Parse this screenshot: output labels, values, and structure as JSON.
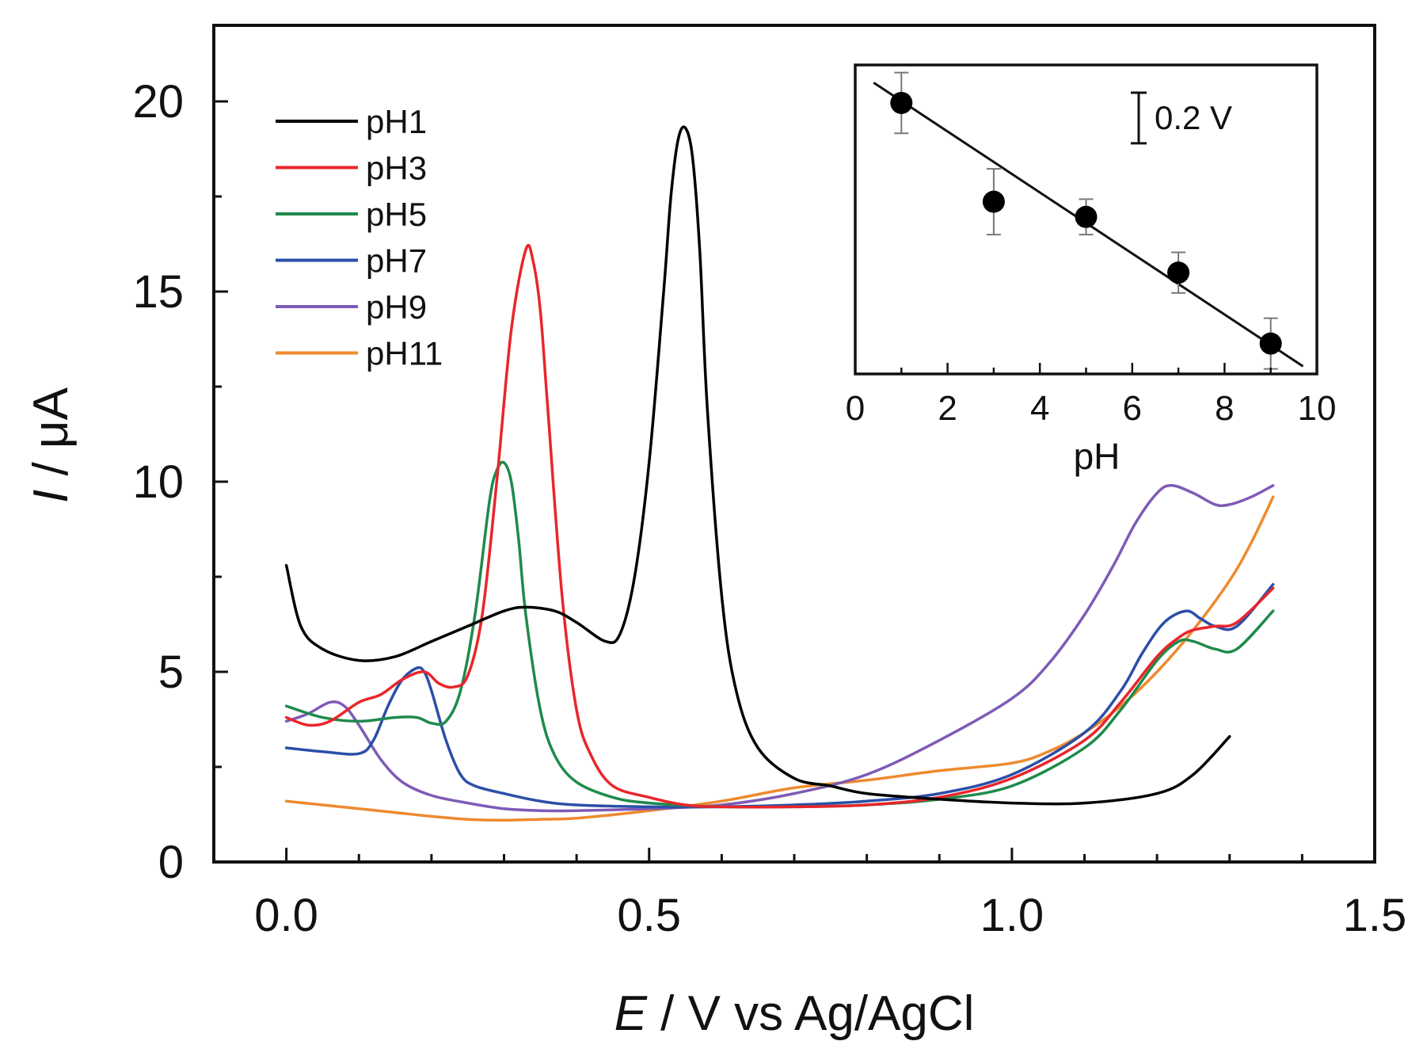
{
  "chart_data": [
    {
      "type": "line",
      "title": "",
      "xlabel_var": "E",
      "xlabel_rest": " / V vs Ag/AgCl",
      "ylabel_var": "I",
      "ylabel_rest": " / μA",
      "xlim": [
        -0.1,
        1.5
      ],
      "ylim": [
        0,
        22
      ],
      "xticks": [
        0.0,
        0.5,
        1.0,
        1.5
      ],
      "xtick_labels": [
        "0.0",
        "0.5",
        "1.0",
        "1.5"
      ],
      "yticks": [
        0,
        5,
        10,
        15,
        20
      ],
      "ytick_labels": [
        "0",
        "5",
        "10",
        "15",
        "20"
      ],
      "grid": false,
      "legend_position": "top-left",
      "series": [
        {
          "name": "pH1",
          "color": "#000000",
          "x": [
            0.0,
            0.02,
            0.05,
            0.1,
            0.15,
            0.2,
            0.25,
            0.3,
            0.33,
            0.37,
            0.4,
            0.44,
            0.46,
            0.48,
            0.5,
            0.52,
            0.53,
            0.54,
            0.55,
            0.56,
            0.57,
            0.58,
            0.6,
            0.62,
            0.65,
            0.7,
            0.75,
            0.8,
            0.9,
            1.0,
            1.1,
            1.2,
            1.25,
            1.3
          ],
          "y": [
            7.8,
            6.2,
            5.6,
            5.3,
            5.4,
            5.8,
            6.2,
            6.6,
            6.7,
            6.6,
            6.3,
            5.8,
            6.0,
            7.5,
            10.5,
            15.0,
            17.5,
            19.0,
            19.3,
            18.5,
            16.0,
            12.0,
            7.0,
            4.5,
            3.0,
            2.2,
            2.0,
            1.8,
            1.65,
            1.55,
            1.55,
            1.8,
            2.3,
            3.3
          ]
        },
        {
          "name": "pH3",
          "color": "#e8262b",
          "x": [
            0.0,
            0.03,
            0.06,
            0.1,
            0.13,
            0.16,
            0.19,
            0.21,
            0.23,
            0.25,
            0.27,
            0.29,
            0.31,
            0.33,
            0.34,
            0.35,
            0.36,
            0.38,
            0.4,
            0.42,
            0.45,
            0.5,
            0.55,
            0.6,
            0.7,
            0.8,
            0.9,
            1.0,
            1.1,
            1.15,
            1.2,
            1.23,
            1.25,
            1.28,
            1.31,
            1.36
          ],
          "y": [
            3.8,
            3.6,
            3.7,
            4.2,
            4.4,
            4.8,
            5.0,
            4.7,
            4.6,
            4.9,
            6.5,
            10.0,
            14.0,
            16.1,
            15.8,
            14.5,
            12.0,
            7.0,
            4.0,
            2.8,
            2.0,
            1.7,
            1.5,
            1.45,
            1.45,
            1.5,
            1.7,
            2.2,
            3.2,
            4.2,
            5.4,
            5.9,
            6.1,
            6.2,
            6.3,
            7.2
          ]
        },
        {
          "name": "pH5",
          "color": "#1f8a4c",
          "x": [
            0.0,
            0.05,
            0.1,
            0.15,
            0.18,
            0.2,
            0.22,
            0.24,
            0.26,
            0.28,
            0.29,
            0.3,
            0.31,
            0.32,
            0.33,
            0.35,
            0.37,
            0.4,
            0.45,
            0.5,
            0.6,
            0.7,
            0.8,
            0.9,
            1.0,
            1.1,
            1.15,
            1.2,
            1.23,
            1.25,
            1.28,
            1.31,
            1.36
          ],
          "y": [
            4.1,
            3.8,
            3.7,
            3.8,
            3.8,
            3.65,
            3.7,
            4.5,
            6.5,
            9.5,
            10.3,
            10.5,
            10.0,
            8.5,
            6.5,
            4.0,
            2.8,
            2.1,
            1.7,
            1.55,
            1.45,
            1.45,
            1.5,
            1.65,
            2.0,
            3.0,
            4.0,
            5.3,
            5.8,
            5.8,
            5.6,
            5.6,
            6.6
          ]
        },
        {
          "name": "pH7",
          "color": "#2b4fa8",
          "x": [
            0.0,
            0.05,
            0.1,
            0.12,
            0.14,
            0.16,
            0.18,
            0.19,
            0.2,
            0.22,
            0.24,
            0.26,
            0.3,
            0.35,
            0.4,
            0.5,
            0.6,
            0.7,
            0.8,
            0.9,
            1.0,
            1.1,
            1.15,
            1.18,
            1.21,
            1.24,
            1.26,
            1.28,
            1.31,
            1.36
          ],
          "y": [
            3.0,
            2.9,
            2.85,
            3.2,
            4.1,
            4.8,
            5.1,
            5.0,
            4.5,
            3.2,
            2.3,
            2.0,
            1.8,
            1.6,
            1.5,
            1.45,
            1.45,
            1.5,
            1.6,
            1.8,
            2.3,
            3.4,
            4.5,
            5.5,
            6.3,
            6.6,
            6.4,
            6.2,
            6.2,
            7.3
          ]
        },
        {
          "name": "pH9",
          "color": "#7e5bb6",
          "x": [
            0.0,
            0.03,
            0.06,
            0.08,
            0.1,
            0.13,
            0.16,
            0.2,
            0.25,
            0.3,
            0.35,
            0.4,
            0.5,
            0.6,
            0.7,
            0.8,
            0.9,
            1.0,
            1.05,
            1.1,
            1.14,
            1.17,
            1.2,
            1.22,
            1.25,
            1.28,
            1.3,
            1.33,
            1.36
          ],
          "y": [
            3.7,
            3.9,
            4.2,
            4.1,
            3.6,
            2.7,
            2.1,
            1.75,
            1.55,
            1.4,
            1.35,
            1.35,
            1.4,
            1.5,
            1.8,
            2.3,
            3.2,
            4.3,
            5.2,
            6.5,
            7.8,
            8.9,
            9.7,
            9.9,
            9.7,
            9.4,
            9.4,
            9.6,
            9.9
          ]
        },
        {
          "name": "pH11",
          "color": "#ee8a2e",
          "x": [
            0.0,
            0.05,
            0.1,
            0.15,
            0.2,
            0.25,
            0.3,
            0.35,
            0.4,
            0.5,
            0.6,
            0.7,
            0.8,
            0.9,
            1.0,
            1.05,
            1.1,
            1.15,
            1.2,
            1.25,
            1.3,
            1.33,
            1.36
          ],
          "y": [
            1.6,
            1.5,
            1.4,
            1.3,
            1.2,
            1.12,
            1.1,
            1.12,
            1.15,
            1.35,
            1.6,
            1.95,
            2.15,
            2.4,
            2.6,
            2.9,
            3.4,
            4.1,
            5.0,
            6.1,
            7.4,
            8.4,
            9.6
          ]
        }
      ]
    },
    {
      "type": "scatter",
      "title": "",
      "xlabel": "pH",
      "ylabel": "",
      "xlim": [
        0,
        10
      ],
      "ylim": [
        0,
        1.22
      ],
      "xticks": [
        0,
        2,
        4,
        6,
        8,
        10
      ],
      "xtick_labels": [
        "0",
        "2",
        "4",
        "6",
        "8",
        "10"
      ],
      "yticks": [],
      "grid": false,
      "legend_position": "none",
      "scale_bar_label": "0.2 V",
      "scale_bar_value": 0.2,
      "points": {
        "x": [
          1,
          3,
          5,
          7,
          9
        ],
        "y": [
          1.07,
          0.68,
          0.62,
          0.4,
          0.12
        ],
        "err": [
          0.12,
          0.13,
          0.07,
          0.08,
          0.1
        ]
      },
      "fit_line": {
        "x": [
          0.4,
          9.7
        ],
        "y": [
          1.15,
          0.03
        ]
      }
    }
  ]
}
